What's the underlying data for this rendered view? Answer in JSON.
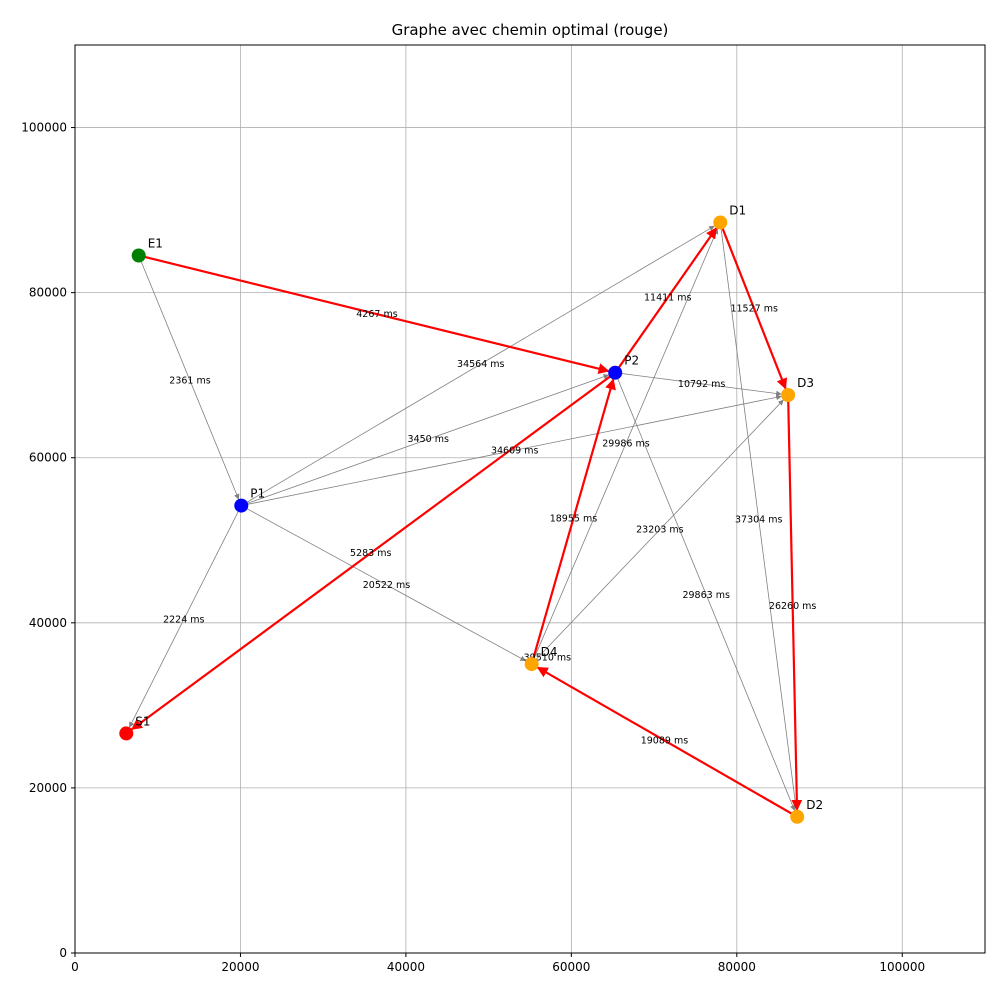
{
  "chart_data": {
    "type": "graph",
    "title": "Graphe avec chemin optimal (rouge)",
    "xlim": [
      0,
      110000
    ],
    "ylim": [
      0,
      110000
    ],
    "xticks": [
      0,
      20000,
      40000,
      60000,
      80000,
      100000
    ],
    "yticks": [
      0,
      20000,
      40000,
      60000,
      80000,
      100000
    ],
    "grid": true,
    "colors": {
      "start": "#008000",
      "relay": "#0000ff",
      "destination": "#ffa500",
      "sink": "#ff0000",
      "edge": "#808080",
      "path": "#ff0000"
    },
    "nodes": [
      {
        "id": "E1",
        "x": 7700,
        "y": 84500,
        "kind": "start"
      },
      {
        "id": "P1",
        "x": 20100,
        "y": 54200,
        "kind": "relay"
      },
      {
        "id": "P2",
        "x": 65300,
        "y": 70300,
        "kind": "relay"
      },
      {
        "id": "D1",
        "x": 78000,
        "y": 88500,
        "kind": "destination"
      },
      {
        "id": "D3",
        "x": 86200,
        "y": 67600,
        "kind": "destination"
      },
      {
        "id": "D4",
        "x": 55200,
        "y": 35000,
        "kind": "destination"
      },
      {
        "id": "D2",
        "x": 87300,
        "y": 16500,
        "kind": "destination"
      },
      {
        "id": "S1",
        "x": 6200,
        "y": 26600,
        "kind": "sink"
      }
    ],
    "edges": [
      {
        "from": "E1",
        "to": "P1",
        "label": "2361 ms",
        "path": false
      },
      {
        "from": "P1",
        "to": "S1",
        "label": "2224 ms",
        "path": false
      },
      {
        "from": "P1",
        "to": "D1",
        "label": "34564 ms",
        "path": false
      },
      {
        "from": "P1",
        "to": "P2",
        "label": "3450 ms",
        "path": false
      },
      {
        "from": "P1",
        "to": "D3",
        "label": "34609 ms",
        "path": false
      },
      {
        "from": "P1",
        "to": "D4",
        "label": "20522 ms",
        "path": false
      },
      {
        "from": "P2",
        "to": "D3",
        "label": "10792 ms",
        "path": false
      },
      {
        "from": "P2",
        "to": "D2",
        "label": "29863 ms",
        "path": false
      },
      {
        "from": "D4",
        "to": "D1",
        "label": "29986 ms",
        "path": false
      },
      {
        "from": "D4",
        "to": "D3",
        "label": "23203 ms",
        "path": false
      },
      {
        "from": "D1",
        "to": "D2",
        "label": "37304 ms",
        "path": false
      },
      {
        "from": "E1",
        "to": "P2",
        "label": "4267 ms",
        "path": true
      },
      {
        "from": "P2",
        "to": "D1",
        "label": "11411 ms",
        "path": true
      },
      {
        "from": "D1",
        "to": "D3",
        "label": "11527 ms",
        "path": true
      },
      {
        "from": "D3",
        "to": "D2",
        "label": "26260 ms",
        "path": true
      },
      {
        "from": "D2",
        "to": "D4",
        "label": "19089 ms",
        "path": true
      },
      {
        "from": "D4",
        "to": "P2",
        "label": "18955 ms",
        "path": true
      },
      {
        "from": "P2",
        "to": "S1",
        "label": "5283 ms",
        "path": true
      }
    ],
    "extra_labels": [
      {
        "text": "39510 ms",
        "x": 57100,
        "y": 35800
      }
    ]
  }
}
